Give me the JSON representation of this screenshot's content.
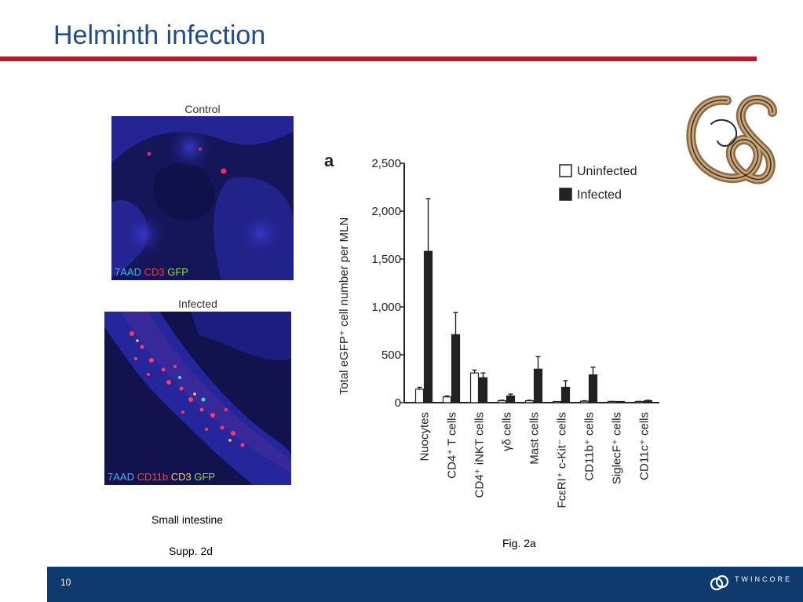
{
  "slide": {
    "title": "Helminth infection",
    "page_number": "10",
    "logo_text": "TWINCORE"
  },
  "micrographs": {
    "control": {
      "label": "Control",
      "legend": [
        "7AAD",
        "CD3",
        "GFP"
      ]
    },
    "infected": {
      "label": "Infected",
      "legend": [
        "7AAD",
        "CD11b",
        "CD3",
        "GFP"
      ]
    },
    "caption_tissue": "Small intestine",
    "caption_ref": "Supp. 2d"
  },
  "figure_ref": "Fig. 2a",
  "chart_data": {
    "type": "bar",
    "panel_letter": "a",
    "ylabel": "Total eGFP⁺ cell number per MLN",
    "ylim": [
      0,
      2500
    ],
    "yticks": [
      0,
      500,
      1000,
      1500,
      2000,
      2500
    ],
    "ytick_labels": [
      "0",
      "500",
      "1,000",
      "1,500",
      "2,000",
      "2,500"
    ],
    "categories": [
      "Nuocytes",
      "CD4⁺ T cells",
      "CD4⁺ iNKT cells",
      "γδ cells",
      "Mast cells",
      "FcεRI⁺ c-Kit⁻ cells",
      "CD11b⁺ cells",
      "SiglecF⁺ cells",
      "CD11c⁺ cells"
    ],
    "series": [
      {
        "name": "Uninfected",
        "values": [
          140,
          60,
          310,
          20,
          20,
          0,
          15,
          10,
          10
        ],
        "errors": [
          20,
          10,
          30,
          5,
          5,
          0,
          5,
          3,
          3
        ],
        "color": "#ffffff"
      },
      {
        "name": "Infected",
        "values": [
          1580,
          710,
          260,
          70,
          350,
          160,
          290,
          5,
          20
        ],
        "errors": [
          550,
          230,
          50,
          20,
          130,
          70,
          80,
          3,
          5
        ],
        "color": "#222222"
      }
    ],
    "legend_position": "top-right"
  }
}
